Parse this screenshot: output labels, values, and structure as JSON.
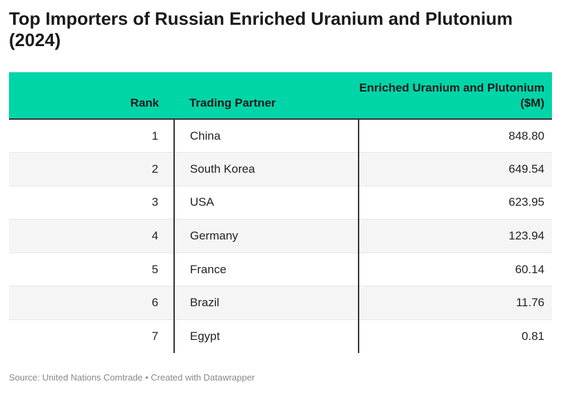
{
  "chart_data": {
    "type": "table",
    "title": "Top Importers of Russian Enriched Uranium and Plutonium (2024)",
    "columns": [
      "Rank",
      "Trading Partner",
      "Enriched Uranium and Plutonium ($M)"
    ],
    "rows": [
      {
        "rank": "1",
        "partner": "China",
        "value": "848.80"
      },
      {
        "rank": "2",
        "partner": "South Korea",
        "value": "649.54"
      },
      {
        "rank": "3",
        "partner": "USA",
        "value": "623.95"
      },
      {
        "rank": "4",
        "partner": "Germany",
        "value": "123.94"
      },
      {
        "rank": "5",
        "partner": "France",
        "value": "60.14"
      },
      {
        "rank": "6",
        "partner": "Brazil",
        "value": "11.76"
      },
      {
        "rank": "7",
        "partner": "Egypt",
        "value": "0.81"
      }
    ],
    "header_color": "#00d5a8",
    "footer": "Source: United Nations Comtrade • Created with Datawrapper"
  }
}
